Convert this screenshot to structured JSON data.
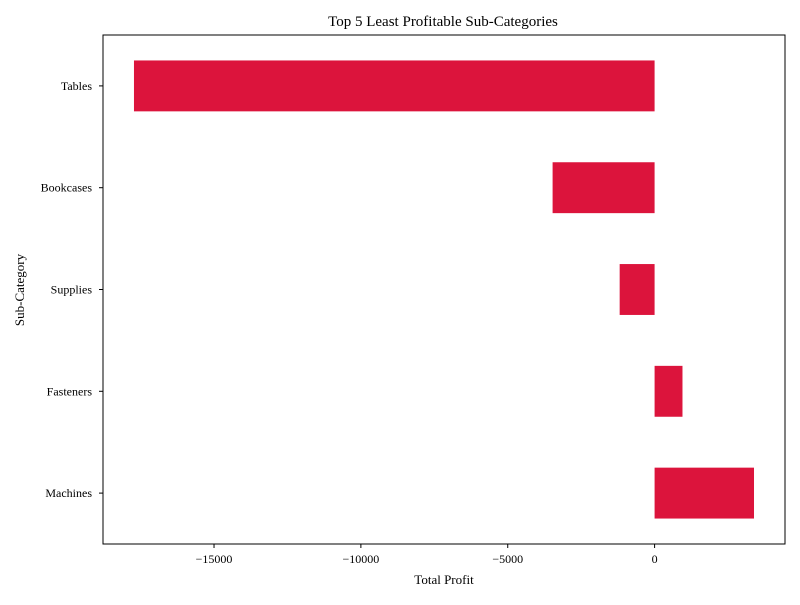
{
  "chart_data": {
    "type": "bar",
    "orientation": "horizontal",
    "title": "Top 5 Least Profitable Sub-Categories",
    "xlabel": "Total Profit",
    "ylabel": "Sub-Category",
    "categories": [
      "Tables",
      "Bookcases",
      "Supplies",
      "Fasteners",
      "Machines"
    ],
    "values": [
      -17725.48,
      -3472.56,
      -1189.1,
      949.52,
      3384.76
    ],
    "xlim": [
      -18780,
      4440
    ],
    "xticks": [
      -15000,
      -10000,
      -5000,
      0
    ],
    "xtick_labels": [
      "−15000",
      "−10000",
      "−5000",
      "0"
    ],
    "grid": false,
    "legend": "none",
    "bar_color": "#DC143C"
  }
}
